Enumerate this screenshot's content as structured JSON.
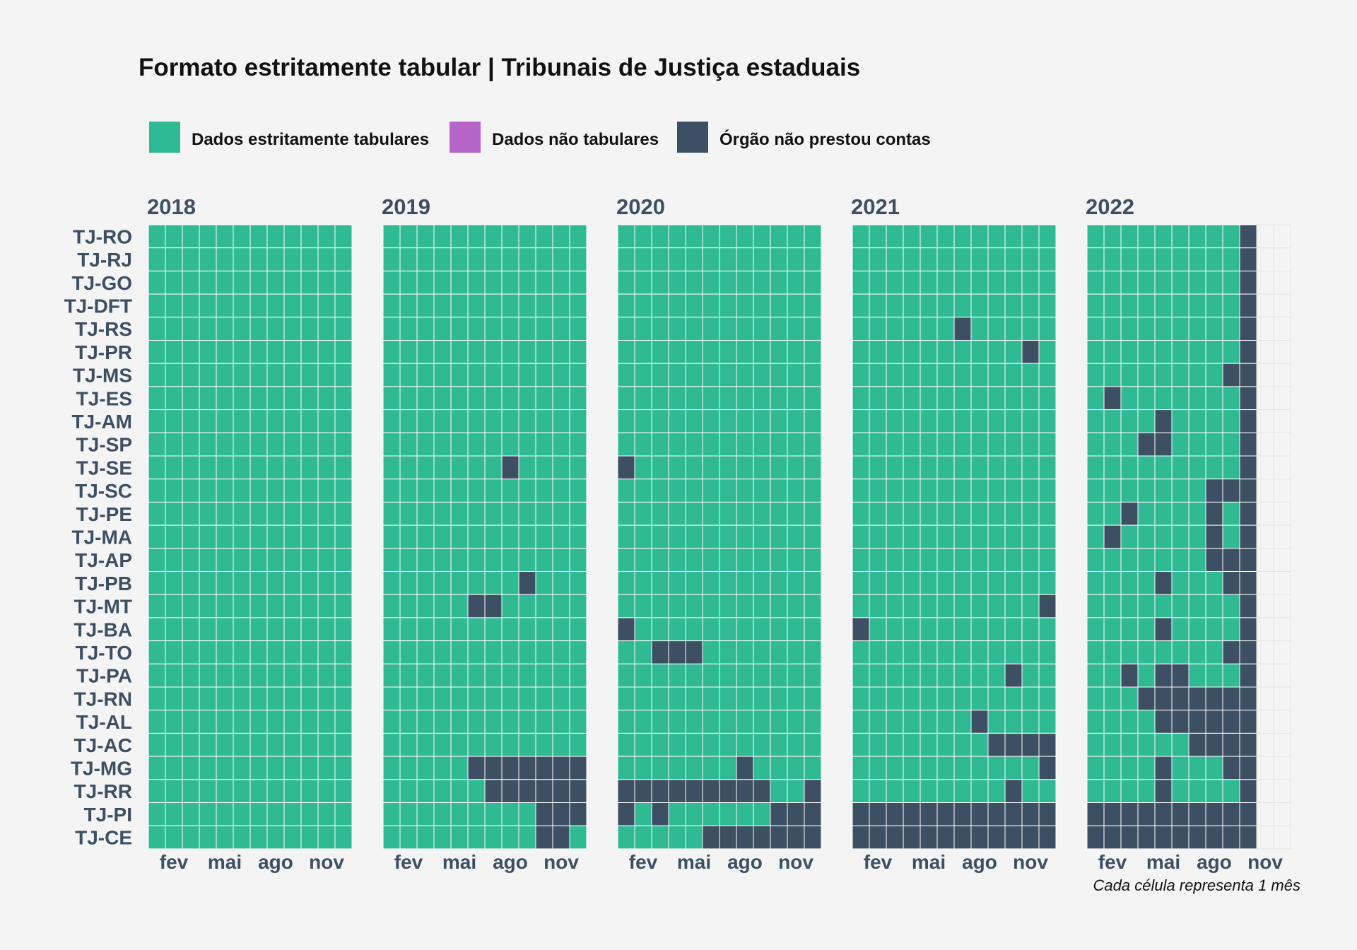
{
  "chart_data": {
    "type": "heatmap",
    "title": "Formato estritamente tabular | Tribunais de Justiça estaduais",
    "caption": "Cada célula representa 1 mês",
    "legend": [
      {
        "key": "T",
        "label": "Dados estritamente tabulares",
        "color": "#2fba93"
      },
      {
        "key": "N",
        "label": "Dados não tabulares",
        "color": "#b565c8"
      },
      {
        "key": "X",
        "label": "Órgão não prestou contas",
        "color": "#3d4f62"
      }
    ],
    "empty_color": "#f4f4f4",
    "x_ticks": [
      {
        "month": 2,
        "label": "fev"
      },
      {
        "month": 5,
        "label": "mai"
      },
      {
        "month": 8,
        "label": "ago"
      },
      {
        "month": 11,
        "label": "nov"
      }
    ],
    "rows": [
      "TJ-RO",
      "TJ-RJ",
      "TJ-GO",
      "TJ-DFT",
      "TJ-RS",
      "TJ-PR",
      "TJ-MS",
      "TJ-ES",
      "TJ-AM",
      "TJ-SP",
      "TJ-SE",
      "TJ-SC",
      "TJ-PE",
      "TJ-MA",
      "TJ-AP",
      "TJ-PB",
      "TJ-MT",
      "TJ-BA",
      "TJ-TO",
      "TJ-PA",
      "TJ-RN",
      "TJ-AL",
      "TJ-AC",
      "TJ-MG",
      "TJ-RR",
      "TJ-PI",
      "TJ-CE"
    ],
    "years": [
      {
        "year": "2018",
        "cells": [
          "TTTTTTTTTTTT",
          "TTTTTTTTTTTT",
          "TTTTTTTTTTTT",
          "TTTTTTTTTTTT",
          "TTTTTTTTTTTT",
          "TTTTTTTTTTTT",
          "TTTTTTTTTTTT",
          "TTTTTTTTTTTT",
          "TTTTTTTTTTTT",
          "TTTTTTTTTTTT",
          "TTTTTTTTTTTT",
          "TTTTTTTTTTTT",
          "TTTTTTTTTTTT",
          "TTTTTTTTTTTT",
          "TTTTTTTTTTTT",
          "TTTTTTTTTTTT",
          "TTTTTTTTTTTT",
          "TTTTTTTTTTTT",
          "TTTTTTTTTTTT",
          "TTTTTTTTTTTT",
          "TTTTTTTTTTTT",
          "TTTTTTTTTTTT",
          "TTTTTTTTTTTT",
          "TTTTTTTTTTTT",
          "TTTTTTTTTTTT",
          "TTTTTTTTTTTT",
          "TTTTTTTTTTTT"
        ]
      },
      {
        "year": "2019",
        "cells": [
          "TTTTTTTTTTTT",
          "TTTTTTTTTTTT",
          "TTTTTTTTTTTT",
          "TTTTTTTTTTTT",
          "TTTTTTTTTTTT",
          "TTTTTTTTTTTT",
          "TTTTTTTTTTTT",
          "TTTTTTTTTTTT",
          "TTTTTTTTTTTT",
          "TTTTTTTTTTTT",
          "TTTTTTTXTTTT",
          "TTTTTTTTTTTT",
          "TTTTTTTTTTTT",
          "TTTTTTTTTTTT",
          "TTTTTTTTTTTT",
          "TTTTTTTTXTTT",
          "TTTTTXXTTTTT",
          "TTTTTTTTTTTT",
          "TTTTTTTTTTTT",
          "TTTTTTTTTTTT",
          "TTTTTTTTTTTT",
          "TTTTTTTTTTTT",
          "TTTTTTTTTTTT",
          "TTTTTXXXXXXX",
          "TTTTTTXXXXXX",
          "TTTTTTTTTXXX",
          "TTTTTTTTTXXT"
        ]
      },
      {
        "year": "2020",
        "cells": [
          "TTTTTTTTTTTT",
          "TTTTTTTTTTTT",
          "TTTTTTTTTTTT",
          "TTTTTTTTTTTT",
          "TTTTTTTTTTTT",
          "TTTTTTTTTTTT",
          "TTTTTTTTTTTT",
          "TTTTTTTTTTTT",
          "TTTTTTTTTTTT",
          "TTTTTTTTTTTT",
          "XTTTTTTTTTTT",
          "TTTTTTTTTTTT",
          "TTTTTTTTTTTT",
          "TTTTTTTTTTTT",
          "TTTTTTTTTTTT",
          "TTTTTTTTTTTT",
          "TTTTTTTTTTTT",
          "XTTTTTTTTTTT",
          "TTXXXTTTTTTT",
          "TTTTTTTTTTTT",
          "TTTTTTTTTTTT",
          "TTTTTTTTTTTT",
          "TTTTTTTTTTTT",
          "TTTTTTTXTTTT",
          "XXXXXXXXXTTX",
          "XTXTTTTTTXXX",
          "TTTTTXXXXXXX"
        ]
      },
      {
        "year": "2021",
        "cells": [
          "TTTTTTTTTTTT",
          "TTTTTTTTTTTT",
          "TTTTTTTTTTTT",
          "TTTTTTTTTTTT",
          "TTTTTTXTTTTT",
          "TTTTTTTTTTXT",
          "TTTTTTTTTTTT",
          "TTTTTTTTTTTT",
          "TTTTTTTTTTTT",
          "TTTTTTTTTTTT",
          "TTTTTTTTTTTT",
          "TTTTTTTTTTTT",
          "TTTTTTTTTTTT",
          "TTTTTTTTTTTT",
          "TTTTTTTTTTTT",
          "TTTTTTTTTTTT",
          "TTTTTTTTTTTX",
          "XTTTTTTTTTTT",
          "TTTTTTTTTTTT",
          "TTTTTTTTTXTT",
          "TTTTTTTTTTTT",
          "TTTTTTTXTTTT",
          "TTTTTTTTXXXX",
          "TTTTTTTTTTTX",
          "TTTTTTTTTXTT",
          "XXXXXXXXXXXX",
          "XXXXXXXXXXXX"
        ]
      },
      {
        "year": "2022",
        "cells": [
          "TTTTTTTTTXEE",
          "TTTTTTTTTXEE",
          "TTTTTTTTTXEE",
          "TTTTTTTTTXEE",
          "TTTTTTTTTXEE",
          "TTTTTTTTTXEE",
          "TTTTTTTTXXEE",
          "TXTTTTTTTXEE",
          "TTTTXTTTTXEE",
          "TTTXXTTTTXEE",
          "TTTTTTTTTXEE",
          "TTTTTTTXXXEE",
          "TTXTTTTXTXEE",
          "TXTTTTTXTXEE",
          "TTTTTTTXXXEE",
          "TTTTXTTTXXEE",
          "TTTTTTTTTXEE",
          "TTTTXTTTTXEE",
          "TTTTTTTTXXEE",
          "TTXTXXTTTXEE",
          "TTTXXXXXXXEE",
          "TTTTXXXXXXEE",
          "TTTTTTXXXXEE",
          "TTTTXTTTXXEE",
          "TTTTXTTTTXEE",
          "XXXXXXXXXXEE",
          "XXXXXXXXXXEE"
        ]
      }
    ]
  }
}
